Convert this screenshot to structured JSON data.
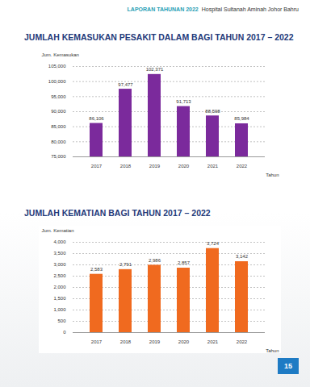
{
  "header": {
    "report": "LAPORAN TAHUNAN 2022",
    "hospital": "Hospital Sultanah Aminah Johor Bahru"
  },
  "page_number": 15,
  "chart_data": [
    {
      "type": "bar",
      "title": "JUMLAH KEMASUKAN PESAKIT DALAM BAGI TAHUN 2017 – 2022",
      "y_label": "Jum. Kemasukan",
      "x_label": "Tahun",
      "categories": [
        "2017",
        "2018",
        "2019",
        "2020",
        "2021",
        "2022"
      ],
      "values": [
        86106,
        97477,
        102371,
        91713,
        88598,
        85984
      ],
      "value_labels": [
        "86,106",
        "97,477",
        "102,371",
        "91,713",
        "88,598",
        "85,984"
      ],
      "color": "#7b2a9c",
      "ylim": [
        75000,
        105000
      ],
      "yticks": [
        {
          "value": 75000,
          "label": "75,000"
        },
        {
          "value": 80000,
          "label": "80,000"
        },
        {
          "value": 85000,
          "label": "85,000"
        },
        {
          "value": 90000,
          "label": "90,000"
        },
        {
          "value": 95000,
          "label": "95,000"
        },
        {
          "value": 100000,
          "label": "100,000"
        },
        {
          "value": 105000,
          "label": "105,000"
        }
      ],
      "grid": true,
      "data_labels": true
    },
    {
      "type": "bar",
      "title": "JUMLAH KEMATIAN BAGI TAHUN 2017 – 2022",
      "y_label": "Jum. Kematian",
      "x_label": "Tahun",
      "categories": [
        "2017",
        "2018",
        "2019",
        "2020",
        "2021",
        "2022"
      ],
      "values": [
        2583,
        2791,
        2986,
        2857,
        3724,
        3142
      ],
      "value_labels": [
        "2,583",
        "2,791",
        "2,986",
        "2,857",
        "3,724",
        "3,142"
      ],
      "color": "#f06a1f",
      "ylim": [
        0,
        4000
      ],
      "yticks": [
        0,
        500,
        {
          "value": 1000,
          "label": "1,000"
        },
        {
          "value": 1500,
          "label": "1,500"
        },
        {
          "value": 2000,
          "label": "2,000"
        },
        {
          "value": 2500,
          "label": "2,500"
        },
        {
          "value": 3000,
          "label": "3,000"
        },
        {
          "value": 3500,
          "label": "3,500"
        },
        {
          "value": 4000,
          "label": "4,000"
        }
      ],
      "grid": true,
      "data_labels": true
    }
  ]
}
